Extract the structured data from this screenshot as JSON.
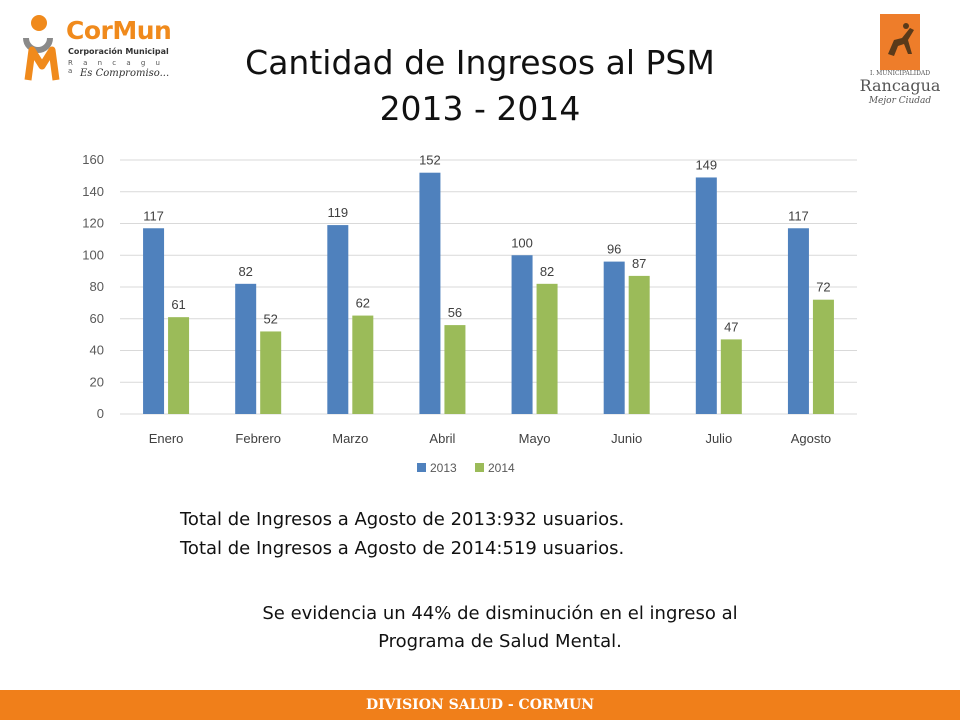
{
  "logos": {
    "left": {
      "brand": "CorMun",
      "subtitle": "Corporación Municipal",
      "city": "R a n c a g u a",
      "slogan": "Es Compromiso..."
    },
    "right": {
      "municipality": "I. MUNICIPALIDAD",
      "city": "Rancagua",
      "slogan": "Mejor Ciudad"
    }
  },
  "slide": {
    "title_line1": "Cantidad de Ingresos al PSM",
    "title_line2": "2013 - 2014",
    "summary_line1": "Total de Ingresos a Agosto de 2013:932 usuarios.",
    "summary_line2": "Total de Ingresos a Agosto de 2014:519 usuarios.",
    "conclusion_line1": "Se evidencia un 44% de disminución en el ingreso al",
    "conclusion_line2": "Programa de Salud Mental.",
    "footer": "DIVISION SALUD - CORMUN"
  },
  "colors": {
    "series_2013": "#4f81bd",
    "series_2014": "#9bbb59",
    "accent": "#f07f1a"
  },
  "chart_data": {
    "type": "bar",
    "categories": [
      "Enero",
      "Febrero",
      "Marzo",
      "Abril",
      "Mayo",
      "Junio",
      "Julio",
      "Agosto"
    ],
    "series": [
      {
        "name": "2013",
        "values": [
          117,
          82,
          119,
          152,
          100,
          96,
          149,
          117
        ]
      },
      {
        "name": "2014",
        "values": [
          61,
          52,
          62,
          56,
          82,
          87,
          47,
          72
        ]
      }
    ],
    "yticks": [
      0,
      20,
      40,
      60,
      80,
      100,
      120,
      140,
      160
    ],
    "ylim": [
      0,
      160
    ],
    "grid": true,
    "legend": "bottom-center",
    "data_labels": true
  }
}
